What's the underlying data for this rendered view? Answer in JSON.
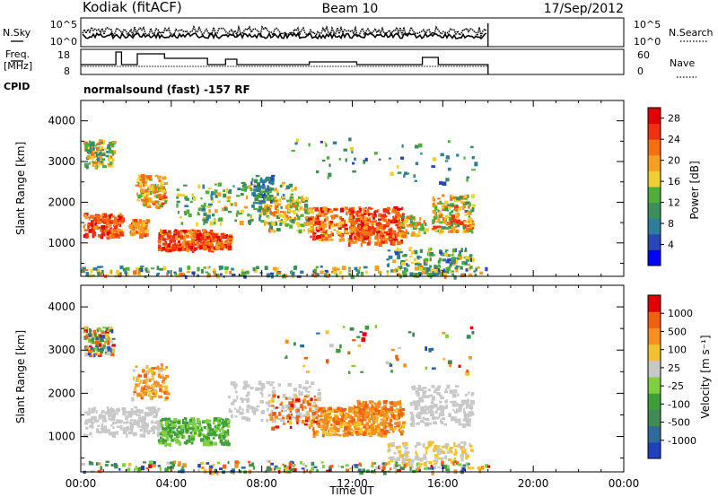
{
  "header": {
    "station": "Kodiak (fitACF)",
    "beam": "Beam 10",
    "date": "17/Sep/2012"
  },
  "info_panels": {
    "nsky_label": "N.Sky",
    "nsearch_label": "N.Search",
    "freq_label_line1": "Freq.",
    "freq_label_line2": "[MHz]",
    "nave_label": "Nave",
    "cpid_label": "CPID",
    "cpid_text": "normalsound (fast) -157 RF",
    "noise_ticks_left": [
      "10^5",
      "10^0"
    ],
    "noise_ticks_right": [
      "10^5",
      "10^0"
    ],
    "freq_ticks": [
      "18",
      "8"
    ],
    "nave_ticks": [
      "60",
      "0"
    ]
  },
  "chart_data": [
    {
      "type": "heatmap",
      "title": "",
      "xlabel": "Time UT",
      "ylabel": "Slant Range [km]",
      "x_ticks": [
        "00:00",
        "04:00",
        "08:00",
        "12:00",
        "16:00",
        "20:00",
        "00:00"
      ],
      "y_ticks": [
        "1000",
        "2000",
        "3000",
        "4000"
      ],
      "xlim_hours": [
        0,
        24
      ],
      "ylim_km": [
        180,
        4500
      ],
      "colorbar": {
        "label": "Power [dB]",
        "ticks": [
          "4",
          "8",
          "12",
          "16",
          "20",
          "24",
          "28"
        ],
        "range": [
          0,
          30
        ],
        "colors": [
          "#0000ff",
          "#2846b4",
          "#2e7d9a",
          "#3a8f5a",
          "#4fae3a",
          "#f0d030",
          "#f5a020",
          "#f57010",
          "#f03010",
          "#e00000"
        ]
      },
      "data_extent_hours": [
        0,
        18
      ]
    },
    {
      "type": "heatmap",
      "title": "",
      "xlabel": "Time UT",
      "ylabel": "Slant Range [km]",
      "x_ticks": [
        "00:00",
        "04:00",
        "08:00",
        "12:00",
        "16:00",
        "20:00",
        "00:00"
      ],
      "y_ticks": [
        "1000",
        "2000",
        "3000",
        "4000"
      ],
      "xlim_hours": [
        0,
        24
      ],
      "ylim_km": [
        180,
        4500
      ],
      "colorbar": {
        "label": "Velocity [m s⁻¹]",
        "ticks": [
          "1000",
          "500",
          "100",
          "25",
          "-25",
          "-100",
          "-500",
          "-1000"
        ],
        "colors": [
          "#2040c0",
          "#2e6a9a",
          "#3f8a55",
          "#3f9e3a",
          "#7fd040",
          "#c8c8c8",
          "#f5c030",
          "#f59020",
          "#f06010",
          "#e00000"
        ]
      },
      "data_extent_hours": [
        0,
        18
      ]
    }
  ]
}
